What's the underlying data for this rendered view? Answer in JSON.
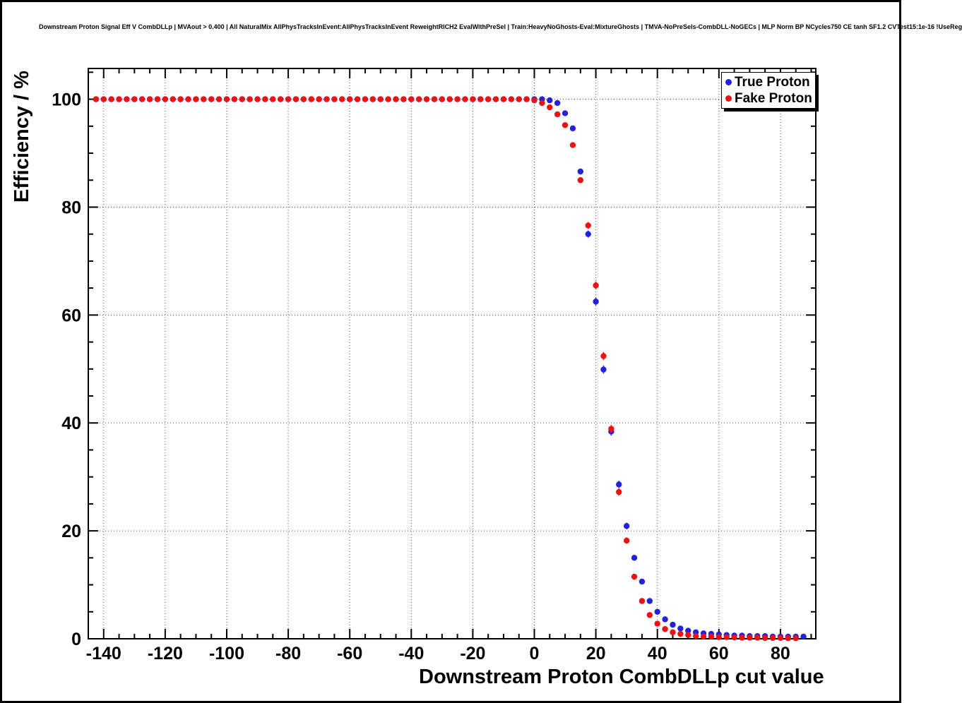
{
  "chart_data": {
    "type": "scatter",
    "title": "Downstream Proton Signal Eff V CombDLLp | MVAout > 0.400 | All NaturalMix AllPhysTracksInEvent:AllPhysTracksInEvent ReweightRICH2 EvalWithPreSel | Train:HeavyNoGhosts-Eval:MixtureGhosts | TMVA-NoPreSels-CombDLL-NoGECs | MLP Norm BP NCycles750 CE tanh SF1.2 CVTest15:1e-16 !UseReg",
    "xlabel": "Downstream Proton CombDLLp cut value",
    "ylabel": "Efficiency / %",
    "xlim": [
      -145,
      91.5
    ],
    "ylim": [
      0,
      105.7
    ],
    "xticks": [
      -140,
      -120,
      -100,
      -80,
      -60,
      -40,
      -20,
      0,
      20,
      40,
      60,
      80
    ],
    "yticks": [
      0,
      20,
      40,
      60,
      80,
      100
    ],
    "x_minor_step": 5,
    "y_minor_step": 5,
    "grid": true,
    "legend_position": "top-right",
    "x_start": -142.5,
    "x_step": 2.5,
    "marker_size": 4.2,
    "series": [
      {
        "name": "True Proton",
        "color": "#2222dd",
        "values": [
          100,
          100,
          100,
          100,
          100,
          100,
          100,
          100,
          100,
          100,
          100,
          100,
          100,
          100,
          100,
          100,
          100,
          100,
          100,
          100,
          100,
          100,
          100,
          100,
          100,
          100,
          100,
          100,
          100,
          100,
          100,
          100,
          100,
          100,
          100,
          100,
          100,
          100,
          100,
          100,
          100,
          100,
          100,
          100,
          100,
          100,
          100,
          100,
          100,
          100,
          100,
          100,
          100,
          100,
          100,
          100,
          100,
          100,
          100,
          99.8,
          99.3,
          97.4,
          94.6,
          86.6,
          75,
          62.5,
          49.9,
          38.4,
          28.6,
          20.9,
          15,
          10.6,
          7,
          5,
          3.6,
          2.6,
          1.9,
          1.5,
          1.2,
          1,
          0.9,
          0.8,
          0.7,
          0.6,
          0.6,
          0.5,
          0.5,
          0.5,
          0.4,
          0.4,
          0.4,
          0.4,
          0.4
        ]
      },
      {
        "name": "Fake Proton",
        "color": "#ee1111",
        "values": [
          100,
          100,
          100,
          100,
          100,
          100,
          100,
          100,
          100,
          100,
          100,
          100,
          100,
          100,
          100,
          100,
          100,
          100,
          100,
          100,
          100,
          100,
          100,
          100,
          100,
          100,
          100,
          100,
          100,
          100,
          100,
          100,
          100,
          100,
          100,
          100,
          100,
          100,
          100,
          100,
          100,
          100,
          100,
          100,
          100,
          100,
          100,
          100,
          100,
          100,
          100,
          100,
          100,
          100,
          100,
          100,
          100,
          99.8,
          99.3,
          98.5,
          97.2,
          95.2,
          91.5,
          85,
          76.6,
          65.5,
          52.4,
          38.9,
          27.2,
          18.2,
          11.5,
          7,
          4.4,
          2.8,
          1.8,
          1.2,
          0.9,
          0.7,
          0.5,
          0.4,
          0.4,
          0.3,
          0.3,
          0.25,
          0.2,
          0.2,
          0.2,
          0.15,
          0.15,
          0.15,
          0.1,
          0.1
        ]
      }
    ]
  }
}
